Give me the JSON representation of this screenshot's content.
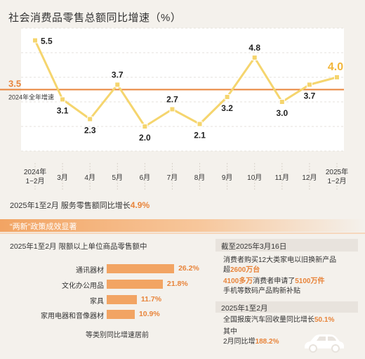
{
  "chart_data": {
    "type": "line",
    "title": "社会消费品零售总额同比增速（%）",
    "categories": [
      "2024年\n1−2月",
      "3月",
      "4月",
      "5月",
      "6月",
      "7月",
      "8月",
      "9月",
      "10月",
      "11月",
      "12月",
      "2025年\n1−2月"
    ],
    "values": [
      5.5,
      3.1,
      2.3,
      3.7,
      2.0,
      2.7,
      2.1,
      3.2,
      4.8,
      3.0,
      3.7,
      4.0
    ],
    "value_labels": [
      "5.5",
      "3.1",
      "2.3",
      "3.7",
      "2.0",
      "2.7",
      "2.1",
      "3.2",
      "4.8",
      "3.0",
      "3.7",
      "4.0"
    ],
    "reference_line": {
      "value": 3.5,
      "label_value": "3.5",
      "label": "2024年全年增速",
      "color": "#e8843a"
    },
    "ylim": [
      1.0,
      6.0
    ],
    "line_color": "#f5d56e",
    "highlight_color": "#f2b63a"
  },
  "summary": {
    "text": "2025年1至2月  服务零售额同比增长",
    "value": "4.9%"
  },
  "banner": {
    "text": "“两新”政策成效显著"
  },
  "left_section": {
    "title": "2025年1至2月  限额以上单位商品零售额中",
    "bars": [
      {
        "label": "通讯器材",
        "value": 26.2,
        "value_text": "26.2%"
      },
      {
        "label": "文化办公用品",
        "value": 21.8,
        "value_text": "21.8%"
      },
      {
        "label": "家具",
        "value": 11.7,
        "value_text": "11.7%"
      },
      {
        "label": "家用电器和音像器材",
        "value": 10.9,
        "value_text": "10.9%"
      }
    ],
    "caption": "等类别同比增速居前",
    "bar_color": "#f2a463"
  },
  "right_section": {
    "title": "截至2025年3月16日",
    "p1_a": "消费者购买12大类家电以旧换新产品",
    "p1_b": "超",
    "p1_hl": "2600万台",
    "p2_hl1": "4100多万",
    "p2_a": "消费者申请了",
    "p2_hl2": "5100万件",
    "p2_b": "手机等数码产品购新补贴",
    "box2_title": "2025年1至2月",
    "p3_a": "全国报废汽车回收量同比增长",
    "p3_hl": "50.1%",
    "p4_a": "其中",
    "p4_b": "2月同比增",
    "p4_hl": "188.2%",
    "car_icon": "car-icon"
  }
}
